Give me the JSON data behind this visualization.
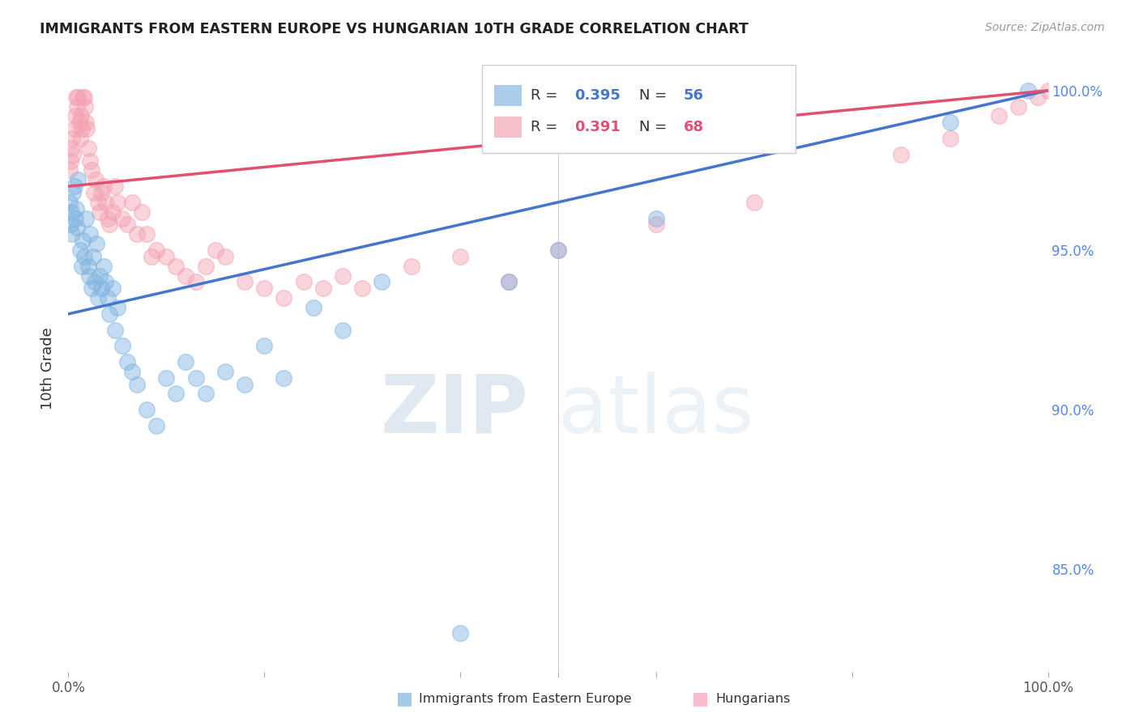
{
  "title": "IMMIGRANTS FROM EASTERN EUROPE VS HUNGARIAN 10TH GRADE CORRELATION CHART",
  "source": "Source: ZipAtlas.com",
  "ylabel": "10th Grade",
  "right_yticks": [
    0.85,
    0.9,
    0.95,
    1.0
  ],
  "right_yticklabels": [
    "85.0%",
    "90.0%",
    "95.0%",
    "100.0%"
  ],
  "xlim": [
    0.0,
    1.0
  ],
  "ylim": [
    0.818,
    1.008
  ],
  "blue_color": "#7EB3E0",
  "pink_color": "#F4A0B0",
  "blue_line_color": "#4477CC",
  "pink_line_color": "#E05070",
  "blue_R": 0.395,
  "blue_N": 56,
  "pink_R": 0.391,
  "pink_N": 68,
  "blue_x": [
    0.001,
    0.002,
    0.003,
    0.004,
    0.005,
    0.006,
    0.007,
    0.008,
    0.009,
    0.01,
    0.012,
    0.014,
    0.015,
    0.016,
    0.018,
    0.02,
    0.021,
    0.022,
    0.024,
    0.025,
    0.027,
    0.029,
    0.03,
    0.032,
    0.034,
    0.036,
    0.038,
    0.04,
    0.042,
    0.045,
    0.048,
    0.05,
    0.055,
    0.06,
    0.065,
    0.07,
    0.08,
    0.09,
    0.1,
    0.11,
    0.12,
    0.13,
    0.14,
    0.16,
    0.18,
    0.2,
    0.22,
    0.25,
    0.28,
    0.32,
    0.4,
    0.45,
    0.5,
    0.6,
    0.9,
    0.98
  ],
  "blue_y": [
    0.965,
    0.958,
    0.962,
    0.955,
    0.968,
    0.97,
    0.96,
    0.963,
    0.957,
    0.972,
    0.95,
    0.945,
    0.953,
    0.948,
    0.96,
    0.945,
    0.942,
    0.955,
    0.938,
    0.948,
    0.94,
    0.952,
    0.935,
    0.942,
    0.938,
    0.945,
    0.94,
    0.935,
    0.93,
    0.938,
    0.925,
    0.932,
    0.92,
    0.915,
    0.912,
    0.908,
    0.9,
    0.895,
    0.91,
    0.905,
    0.915,
    0.91,
    0.905,
    0.912,
    0.908,
    0.92,
    0.91,
    0.932,
    0.925,
    0.94,
    0.83,
    0.94,
    0.95,
    0.96,
    0.99,
    1.0
  ],
  "pink_x": [
    0.001,
    0.002,
    0.003,
    0.004,
    0.005,
    0.006,
    0.007,
    0.008,
    0.009,
    0.01,
    0.011,
    0.012,
    0.013,
    0.014,
    0.015,
    0.016,
    0.017,
    0.018,
    0.019,
    0.02,
    0.022,
    0.024,
    0.026,
    0.028,
    0.03,
    0.032,
    0.034,
    0.036,
    0.038,
    0.04,
    0.042,
    0.045,
    0.048,
    0.05,
    0.055,
    0.06,
    0.065,
    0.07,
    0.075,
    0.08,
    0.085,
    0.09,
    0.1,
    0.11,
    0.12,
    0.13,
    0.14,
    0.15,
    0.16,
    0.18,
    0.2,
    0.22,
    0.24,
    0.26,
    0.28,
    0.3,
    0.35,
    0.4,
    0.45,
    0.5,
    0.6,
    0.7,
    0.85,
    0.9,
    0.95,
    0.97,
    0.99,
    1.0
  ],
  "pink_y": [
    0.975,
    0.978,
    0.982,
    0.985,
    0.98,
    0.988,
    0.992,
    0.998,
    0.995,
    0.998,
    0.99,
    0.985,
    0.992,
    0.988,
    0.998,
    0.998,
    0.995,
    0.99,
    0.988,
    0.982,
    0.978,
    0.975,
    0.968,
    0.972,
    0.965,
    0.962,
    0.968,
    0.97,
    0.965,
    0.96,
    0.958,
    0.962,
    0.97,
    0.965,
    0.96,
    0.958,
    0.965,
    0.955,
    0.962,
    0.955,
    0.948,
    0.95,
    0.948,
    0.945,
    0.942,
    0.94,
    0.945,
    0.95,
    0.948,
    0.94,
    0.938,
    0.935,
    0.94,
    0.938,
    0.942,
    0.938,
    0.945,
    0.948,
    0.94,
    0.95,
    0.958,
    0.965,
    0.98,
    0.985,
    0.992,
    0.995,
    0.998,
    1.0
  ],
  "watermark_zip": "ZIP",
  "watermark_atlas": "atlas",
  "background_color": "#FFFFFF",
  "grid_color": "#DDDDDD"
}
